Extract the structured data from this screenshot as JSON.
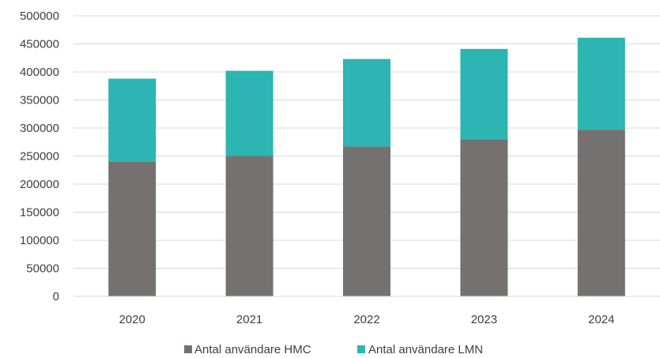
{
  "chart_data": {
    "type": "bar",
    "stacked": true,
    "categories": [
      "2020",
      "2021",
      "2022",
      "2023",
      "2024"
    ],
    "series": [
      {
        "name": "Antal användare HMC",
        "color": "#767171",
        "values": [
          240000,
          250000,
          267000,
          280000,
          297000
        ]
      },
      {
        "name": "Antal användare LMN",
        "color": "#2CB5B2",
        "values": [
          148000,
          152000,
          156000,
          161000,
          164000
        ]
      }
    ],
    "ylim": [
      0,
      500000
    ],
    "yticks": [
      0,
      50000,
      100000,
      150000,
      200000,
      250000,
      300000,
      350000,
      400000,
      450000,
      500000
    ],
    "grid": true,
    "legend": "bottom",
    "title": "",
    "xlabel": "",
    "ylabel": ""
  }
}
